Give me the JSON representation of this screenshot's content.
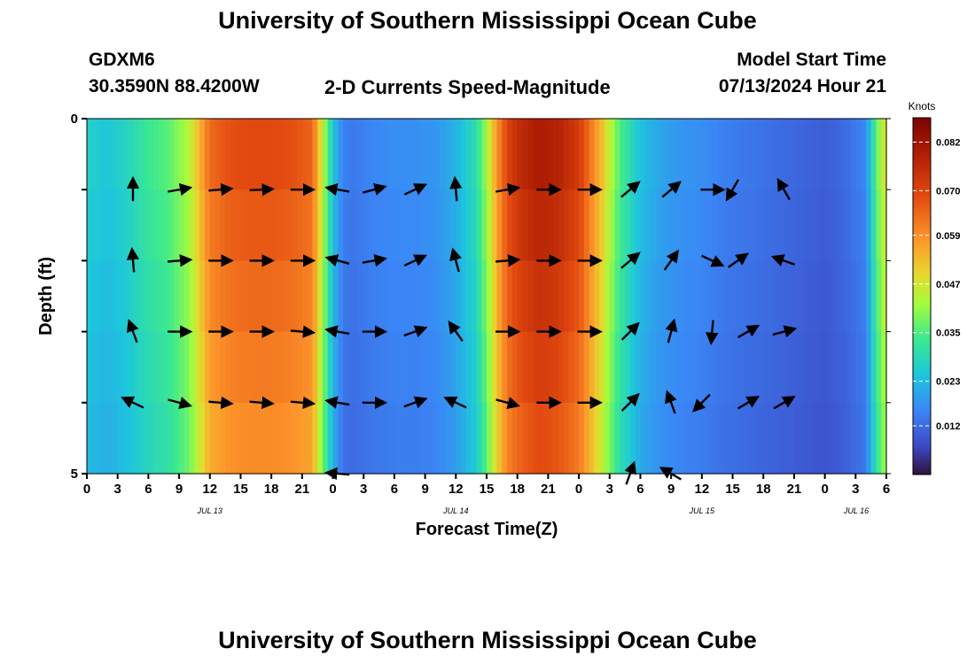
{
  "title": "University of Southern Mississippi Ocean Cube",
  "footer_title": "University of Southern Mississippi Ocean Cube",
  "station": {
    "id": "GDXM6",
    "coords": "30.3590N  88.4200W"
  },
  "chart_label": "2-D Currents Speed-Magnitude",
  "model_start": {
    "label": "Model Start Time",
    "value": "07/13/2024 Hour 21"
  },
  "chart_data": {
    "type": "heatmap",
    "title": "2-D Currents Speed-Magnitude",
    "xlabel": "Forecast Time(Z)",
    "ylabel": "Depth (ft)",
    "x_unit": "hours since 2024-07-13 00Z",
    "xlim": [
      0,
      78
    ],
    "ylim": [
      0,
      5
    ],
    "y_ticks": [
      "0",
      "5"
    ],
    "x_tick_labels": [
      "0",
      "3",
      "6",
      "9",
      "12",
      "15",
      "18",
      "21",
      "0",
      "3",
      "6",
      "9",
      "12",
      "15",
      "18",
      "21",
      "0",
      "3",
      "6",
      "9",
      "12",
      "15",
      "18",
      "21",
      "0",
      "3",
      "6"
    ],
    "date_labels": [
      {
        "text": "JUL 13",
        "hour": 12
      },
      {
        "text": "JUL 14",
        "hour": 36
      },
      {
        "text": "JUL 15",
        "hour": 60
      },
      {
        "text": "JUL 16",
        "hour": 82
      }
    ],
    "colorbar": {
      "label": "Knots",
      "ticks": [
        "0.082",
        "0.070",
        "0.059",
        "0.047",
        "0.035",
        "0.023",
        "0.012"
      ],
      "min": 0.0,
      "max": 0.088
    },
    "speed_profile": {
      "hours": [
        0,
        2,
        4,
        6,
        8,
        10,
        11,
        12,
        14,
        16,
        18,
        20,
        22,
        23,
        24,
        25,
        26,
        28,
        30,
        32,
        34,
        36,
        38,
        39,
        40,
        41,
        42,
        44,
        46,
        48,
        50,
        52,
        54,
        56,
        58,
        60,
        62,
        64,
        66,
        68,
        70,
        72,
        74,
        76,
        77,
        78
      ],
      "speed": [
        0.027,
        0.025,
        0.028,
        0.033,
        0.036,
        0.044,
        0.054,
        0.064,
        0.068,
        0.069,
        0.069,
        0.068,
        0.065,
        0.045,
        0.025,
        0.015,
        0.014,
        0.016,
        0.017,
        0.017,
        0.018,
        0.022,
        0.03,
        0.042,
        0.058,
        0.07,
        0.075,
        0.08,
        0.078,
        0.072,
        0.055,
        0.035,
        0.024,
        0.02,
        0.018,
        0.017,
        0.015,
        0.014,
        0.013,
        0.012,
        0.011,
        0.01,
        0.012,
        0.016,
        0.036,
        0.05
      ]
    },
    "vectors": [
      {
        "hour": 4.5,
        "depth": 1,
        "angle": -90
      },
      {
        "hour": 9,
        "depth": 1,
        "angle": -10
      },
      {
        "hour": 13,
        "depth": 1,
        "angle": -5
      },
      {
        "hour": 17,
        "depth": 1,
        "angle": -3
      },
      {
        "hour": 21,
        "depth": 1,
        "angle": 0
      },
      {
        "hour": 24.5,
        "depth": 1,
        "angle": -170
      },
      {
        "hour": 28,
        "depth": 1,
        "angle": -15
      },
      {
        "hour": 32,
        "depth": 1,
        "angle": -25
      },
      {
        "hour": 36,
        "depth": 1,
        "angle": -95
      },
      {
        "hour": 41,
        "depth": 1,
        "angle": -10
      },
      {
        "hour": 45,
        "depth": 1,
        "angle": 0
      },
      {
        "hour": 49,
        "depth": 1,
        "angle": 0
      },
      {
        "hour": 53,
        "depth": 1,
        "angle": -40
      },
      {
        "hour": 57,
        "depth": 1,
        "angle": -40
      },
      {
        "hour": 61,
        "depth": 1,
        "angle": 0
      },
      {
        "hour": 63,
        "depth": 1,
        "angle": 120
      },
      {
        "hour": 68,
        "depth": 1,
        "angle": -120
      },
      {
        "hour": 4.5,
        "depth": 2,
        "angle": -95
      },
      {
        "hour": 9,
        "depth": 2,
        "angle": -5
      },
      {
        "hour": 13,
        "depth": 2,
        "angle": 0
      },
      {
        "hour": 17,
        "depth": 2,
        "angle": 0
      },
      {
        "hour": 21,
        "depth": 2,
        "angle": 0
      },
      {
        "hour": 24.5,
        "depth": 2,
        "angle": -165
      },
      {
        "hour": 28,
        "depth": 2,
        "angle": -10
      },
      {
        "hour": 32,
        "depth": 2,
        "angle": -25
      },
      {
        "hour": 36,
        "depth": 2,
        "angle": -105
      },
      {
        "hour": 41,
        "depth": 2,
        "angle": -5
      },
      {
        "hour": 45,
        "depth": 2,
        "angle": 0
      },
      {
        "hour": 49,
        "depth": 2,
        "angle": 0
      },
      {
        "hour": 53,
        "depth": 2,
        "angle": -40
      },
      {
        "hour": 57,
        "depth": 2,
        "angle": -55
      },
      {
        "hour": 61,
        "depth": 2,
        "angle": 25
      },
      {
        "hour": 63.5,
        "depth": 2,
        "angle": -35
      },
      {
        "hour": 68,
        "depth": 2,
        "angle": -160
      },
      {
        "hour": 4.5,
        "depth": 3,
        "angle": -110
      },
      {
        "hour": 9,
        "depth": 3,
        "angle": 0
      },
      {
        "hour": 13,
        "depth": 3,
        "angle": 0
      },
      {
        "hour": 17,
        "depth": 3,
        "angle": 0
      },
      {
        "hour": 21,
        "depth": 3,
        "angle": 5
      },
      {
        "hour": 24.5,
        "depth": 3,
        "angle": -170
      },
      {
        "hour": 28,
        "depth": 3,
        "angle": 0
      },
      {
        "hour": 32,
        "depth": 3,
        "angle": -20
      },
      {
        "hour": 36,
        "depth": 3,
        "angle": -125
      },
      {
        "hour": 41,
        "depth": 3,
        "angle": 0
      },
      {
        "hour": 45,
        "depth": 3,
        "angle": 0
      },
      {
        "hour": 49,
        "depth": 3,
        "angle": 0
      },
      {
        "hour": 53,
        "depth": 3,
        "angle": -45
      },
      {
        "hour": 57,
        "depth": 3,
        "angle": -75
      },
      {
        "hour": 61,
        "depth": 3,
        "angle": 95
      },
      {
        "hour": 64.5,
        "depth": 3,
        "angle": -30
      },
      {
        "hour": 68,
        "depth": 3,
        "angle": -15
      },
      {
        "hour": 4.5,
        "depth": 4,
        "angle": -155
      },
      {
        "hour": 9,
        "depth": 4,
        "angle": 15
      },
      {
        "hour": 13,
        "depth": 4,
        "angle": 5
      },
      {
        "hour": 17,
        "depth": 4,
        "angle": 5
      },
      {
        "hour": 21,
        "depth": 4,
        "angle": 5
      },
      {
        "hour": 24.5,
        "depth": 4,
        "angle": -170
      },
      {
        "hour": 28,
        "depth": 4,
        "angle": 0
      },
      {
        "hour": 32,
        "depth": 4,
        "angle": -20
      },
      {
        "hour": 36,
        "depth": 4,
        "angle": -155
      },
      {
        "hour": 41,
        "depth": 4,
        "angle": 15
      },
      {
        "hour": 45,
        "depth": 4,
        "angle": 0
      },
      {
        "hour": 49,
        "depth": 4,
        "angle": 0
      },
      {
        "hour": 53,
        "depth": 4,
        "angle": -45
      },
      {
        "hour": 57,
        "depth": 4,
        "angle": -110
      },
      {
        "hour": 60,
        "depth": 4,
        "angle": 135
      },
      {
        "hour": 64.5,
        "depth": 4,
        "angle": -30
      },
      {
        "hour": 68,
        "depth": 4,
        "angle": -30
      },
      {
        "hour": 24.5,
        "depth": 5,
        "angle": -175
      },
      {
        "hour": 53,
        "depth": 5,
        "angle": -70
      },
      {
        "hour": 57,
        "depth": 5,
        "angle": -150
      }
    ]
  }
}
